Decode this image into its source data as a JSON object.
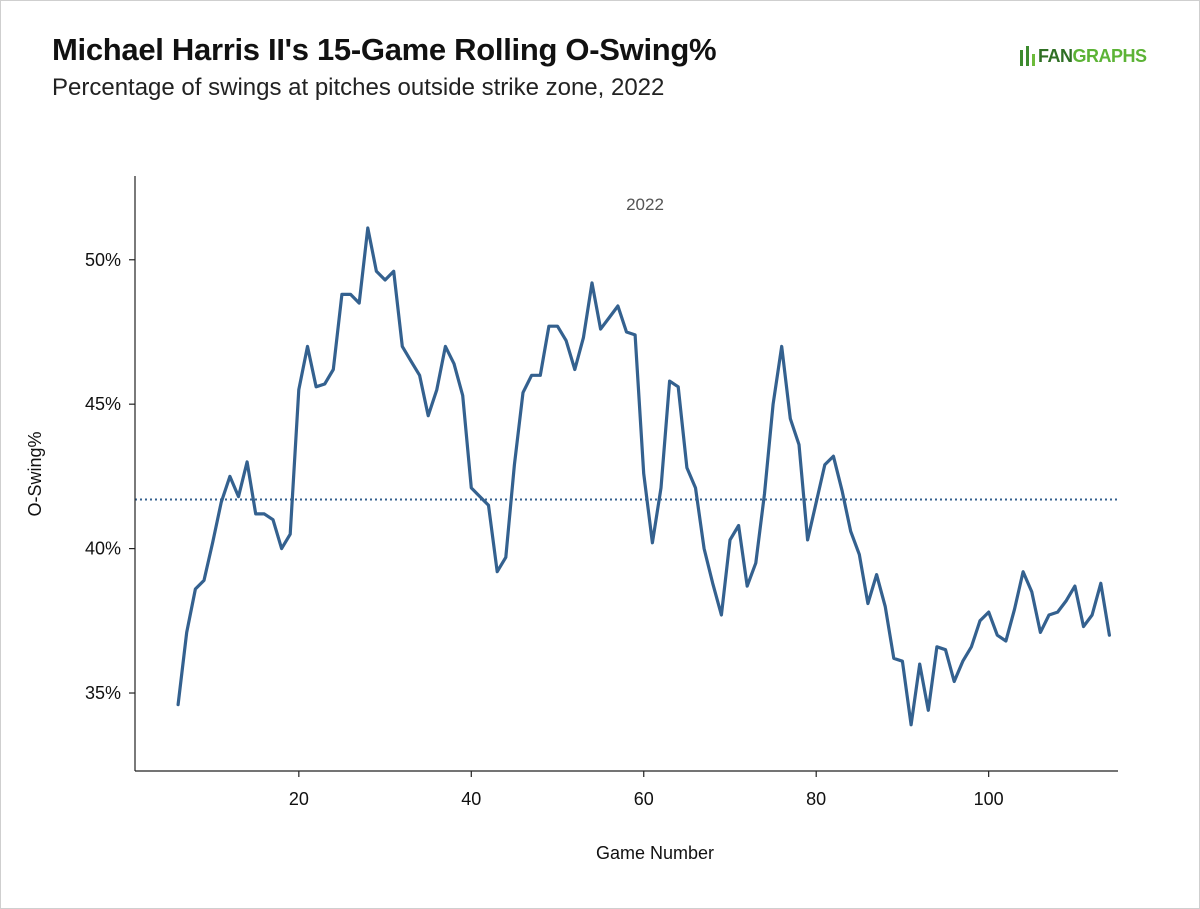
{
  "title": "Michael Harris II's 15-Game Rolling O-Swing%",
  "subtitle": "Percentage of swings at pitches outside strike zone, 2022",
  "brand": {
    "name_part1": "FAN",
    "name_part2": "GRAPHS",
    "color_dark": "#2f6f24",
    "color_light": "#5cb336"
  },
  "chart_data": {
    "type": "line",
    "facet_label": "2022",
    "xlabel": "Game Number",
    "ylabel": "O-Swing%",
    "xlim": [
      1,
      115
    ],
    "ylim": [
      32.3,
      52.9
    ],
    "x_ticks": [
      20,
      40,
      60,
      80,
      100
    ],
    "y_ticks": [
      35,
      40,
      45,
      50
    ],
    "y_tick_labels": [
      "35%",
      "40%",
      "45%",
      "50%"
    ],
    "line_color": "#34618f",
    "reference_line": {
      "y": 41.7,
      "style": "dotted",
      "color": "#34618f"
    },
    "series": [
      {
        "x": [
          6,
          7,
          8,
          9,
          10,
          11,
          12,
          13,
          14,
          15,
          16,
          17,
          18,
          19,
          20,
          21,
          22,
          23,
          24,
          25,
          26,
          27,
          28,
          29,
          30,
          31,
          32,
          33,
          34,
          35,
          36,
          37,
          38,
          39,
          40,
          41,
          42,
          43,
          44,
          45,
          46,
          47,
          48,
          49,
          50,
          51,
          52,
          53,
          54,
          55,
          56,
          57,
          58,
          59,
          60,
          61,
          62,
          63,
          64,
          65,
          66,
          67,
          68,
          69,
          70,
          71,
          72,
          73,
          74,
          75,
          76,
          77,
          78,
          79,
          80,
          81,
          82,
          83,
          84,
          85,
          86,
          87,
          88,
          89,
          90,
          91,
          92,
          93,
          94,
          95,
          96,
          97,
          98,
          99,
          100,
          101,
          102,
          103,
          104,
          105,
          106,
          107,
          108,
          109,
          110,
          111,
          112,
          113,
          114
        ],
        "y": [
          34.6,
          37.1,
          38.6,
          38.9,
          40.2,
          41.6,
          42.5,
          41.8,
          43.0,
          41.2,
          41.2,
          41.0,
          40.0,
          40.5,
          45.5,
          47.0,
          45.6,
          45.7,
          46.2,
          48.8,
          48.8,
          48.5,
          51.1,
          49.6,
          49.3,
          49.6,
          47.0,
          46.5,
          46.0,
          44.6,
          45.5,
          47.0,
          46.4,
          45.3,
          42.1,
          41.8,
          41.5,
          39.2,
          39.7,
          42.9,
          45.4,
          46.0,
          46.0,
          47.7,
          47.7,
          47.2,
          46.2,
          47.3,
          49.2,
          47.6,
          48.0,
          48.4,
          47.5,
          47.4,
          42.6,
          40.2,
          42.1,
          45.8,
          45.6,
          42.8,
          42.1,
          40.0,
          38.8,
          37.7,
          40.3,
          40.8,
          38.7,
          39.5,
          41.9,
          45.0,
          47.0,
          44.5,
          43.6,
          40.3,
          41.6,
          42.9,
          43.2,
          42.0,
          40.6,
          39.8,
          38.1,
          39.1,
          38.0,
          36.2,
          36.1,
          33.9,
          36.0,
          34.4,
          36.6,
          36.5,
          35.4,
          36.1,
          36.6,
          37.5,
          37.8,
          37.0,
          36.8,
          37.9,
          39.2,
          38.5,
          37.1,
          37.7,
          37.8,
          38.2,
          38.7,
          37.3,
          37.7,
          38.8,
          37.0
        ]
      }
    ]
  }
}
